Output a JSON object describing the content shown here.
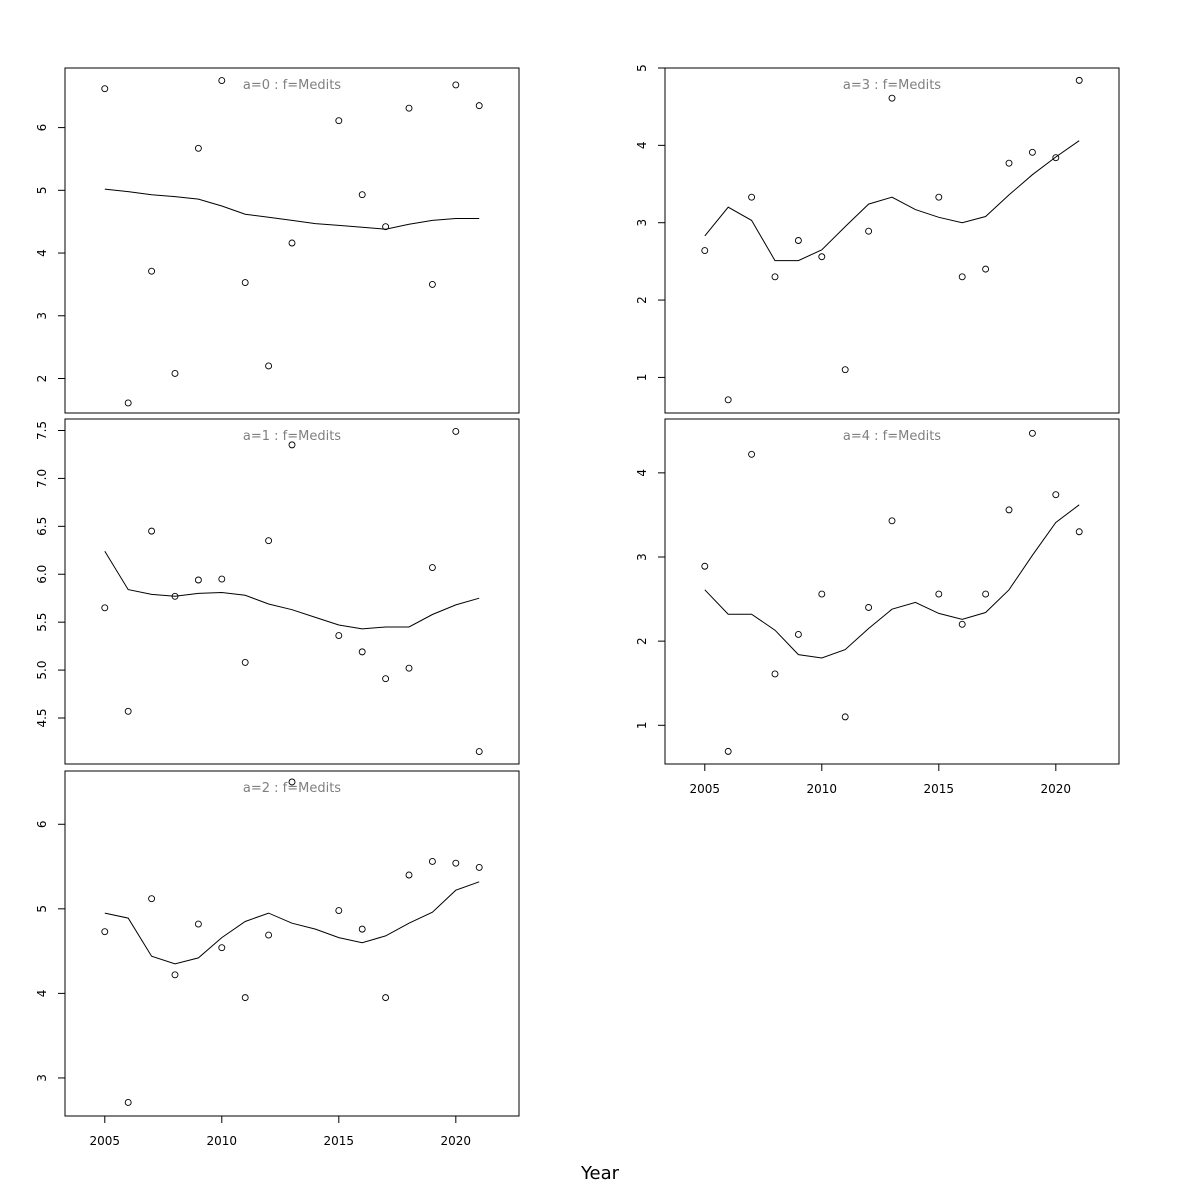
{
  "xlabel": "Year",
  "x_ticks": [
    2005,
    2010,
    2015,
    2020
  ],
  "x_range": [
    2003.3,
    2022.7
  ],
  "chart_data": [
    {
      "type": "scatter",
      "title": "a=0 : f=Medits",
      "x": [
        2005,
        2006,
        2007,
        2008,
        2009,
        2010,
        2011,
        2012,
        2013,
        2015,
        2016,
        2017,
        2018,
        2019,
        2020,
        2021
      ],
      "points": [
        6.62,
        1.61,
        3.71,
        2.08,
        5.67,
        6.75,
        3.53,
        2.2,
        4.16,
        6.11,
        4.93,
        4.42,
        6.31,
        3.5,
        6.68,
        6.35
      ],
      "smooth_x": [
        2005,
        2006,
        2007,
        2008,
        2009,
        2010,
        2011,
        2012,
        2013,
        2014,
        2015,
        2016,
        2017,
        2018,
        2019,
        2020,
        2021
      ],
      "smooth": [
        5.02,
        4.98,
        4.93,
        4.9,
        4.86,
        4.75,
        4.62,
        4.57,
        4.52,
        4.47,
        4.44,
        4.41,
        4.38,
        4.46,
        4.52,
        4.55,
        4.55
      ],
      "yticks": [
        2,
        3,
        4,
        5,
        6
      ],
      "ylim": [
        1.45,
        6.95
      ]
    },
    {
      "type": "scatter",
      "title": "a=1 : f=Medits",
      "x": [
        2005,
        2006,
        2007,
        2008,
        2009,
        2010,
        2011,
        2012,
        2013,
        2015,
        2016,
        2017,
        2018,
        2019,
        2020,
        2021
      ],
      "points": [
        5.65,
        4.57,
        6.45,
        5.77,
        5.94,
        5.95,
        5.08,
        6.35,
        7.35,
        5.36,
        5.19,
        4.91,
        5.02,
        6.07,
        7.49,
        4.15
      ],
      "smooth_x": [
        2005,
        2006,
        2007,
        2008,
        2009,
        2010,
        2011,
        2012,
        2013,
        2014,
        2015,
        2016,
        2017,
        2018,
        2019,
        2020,
        2021
      ],
      "smooth": [
        6.24,
        5.84,
        5.79,
        5.77,
        5.8,
        5.81,
        5.78,
        5.69,
        5.63,
        5.55,
        5.47,
        5.43,
        5.45,
        5.45,
        5.58,
        5.68,
        5.75
      ],
      "yticks": [
        4.5,
        5.0,
        5.5,
        6.0,
        6.5,
        7.0,
        7.5
      ],
      "ylim": [
        4.02,
        7.62
      ],
      "ytick_decimals": 1
    },
    {
      "type": "scatter",
      "title": "a=2 : f=Medits",
      "x": [
        2005,
        2006,
        2007,
        2008,
        2009,
        2010,
        2011,
        2012,
        2013,
        2015,
        2016,
        2017,
        2018,
        2019,
        2020,
        2021
      ],
      "points": [
        4.73,
        2.71,
        5.12,
        4.22,
        4.82,
        4.54,
        3.95,
        4.69,
        6.5,
        4.98,
        4.76,
        3.95,
        5.4,
        5.56,
        5.54,
        5.49
      ],
      "smooth_x": [
        2005,
        2006,
        2007,
        2008,
        2009,
        2010,
        2011,
        2012,
        2013,
        2014,
        2015,
        2016,
        2017,
        2018,
        2019,
        2020,
        2021
      ],
      "smooth": [
        4.95,
        4.89,
        4.44,
        4.35,
        4.42,
        4.66,
        4.85,
        4.95,
        4.83,
        4.76,
        4.66,
        4.6,
        4.68,
        4.83,
        4.96,
        5.22,
        5.32
      ],
      "yticks": [
        3,
        4,
        5,
        6
      ],
      "ylim": [
        2.55,
        6.63
      ]
    },
    {
      "type": "scatter",
      "title": "a=3 : f=Medits",
      "x": [
        2005,
        2006,
        2007,
        2008,
        2009,
        2010,
        2011,
        2012,
        2013,
        2015,
        2016,
        2017,
        2018,
        2019,
        2020,
        2021
      ],
      "points": [
        2.64,
        0.71,
        3.33,
        2.3,
        2.77,
        2.56,
        1.1,
        2.89,
        4.61,
        3.33,
        2.3,
        2.4,
        3.77,
        3.91,
        3.84,
        4.84
      ],
      "smooth_x": [
        2005,
        2006,
        2007,
        2008,
        2009,
        2010,
        2011,
        2012,
        2013,
        2014,
        2015,
        2016,
        2017,
        2018,
        2019,
        2020,
        2021
      ],
      "smooth": [
        2.83,
        3.2,
        3.03,
        2.51,
        2.51,
        2.65,
        2.95,
        3.24,
        3.33,
        3.17,
        3.07,
        3.0,
        3.08,
        3.36,
        3.62,
        3.85,
        4.06
      ],
      "yticks": [
        1,
        2,
        3,
        4,
        5
      ],
      "ylim": [
        0.54,
        5.0
      ]
    },
    {
      "type": "scatter",
      "title": "a=4 : f=Medits",
      "x": [
        2005,
        2006,
        2007,
        2008,
        2009,
        2010,
        2011,
        2012,
        2013,
        2015,
        2016,
        2017,
        2018,
        2019,
        2020,
        2021
      ],
      "points": [
        2.89,
        0.69,
        4.22,
        1.61,
        2.08,
        2.56,
        1.1,
        2.4,
        3.43,
        2.56,
        2.2,
        2.56,
        3.56,
        4.47,
        3.74,
        3.3
      ],
      "smooth_x": [
        2005,
        2006,
        2007,
        2008,
        2009,
        2010,
        2011,
        2012,
        2013,
        2014,
        2015,
        2016,
        2017,
        2018,
        2019,
        2020,
        2021
      ],
      "smooth": [
        2.61,
        2.32,
        2.32,
        2.13,
        1.84,
        1.8,
        1.9,
        2.15,
        2.38,
        2.46,
        2.33,
        2.26,
        2.34,
        2.61,
        3.02,
        3.41,
        3.62
      ],
      "yticks": [
        1,
        2,
        3,
        4
      ],
      "ylim": [
        0.54,
        4.64
      ]
    }
  ]
}
